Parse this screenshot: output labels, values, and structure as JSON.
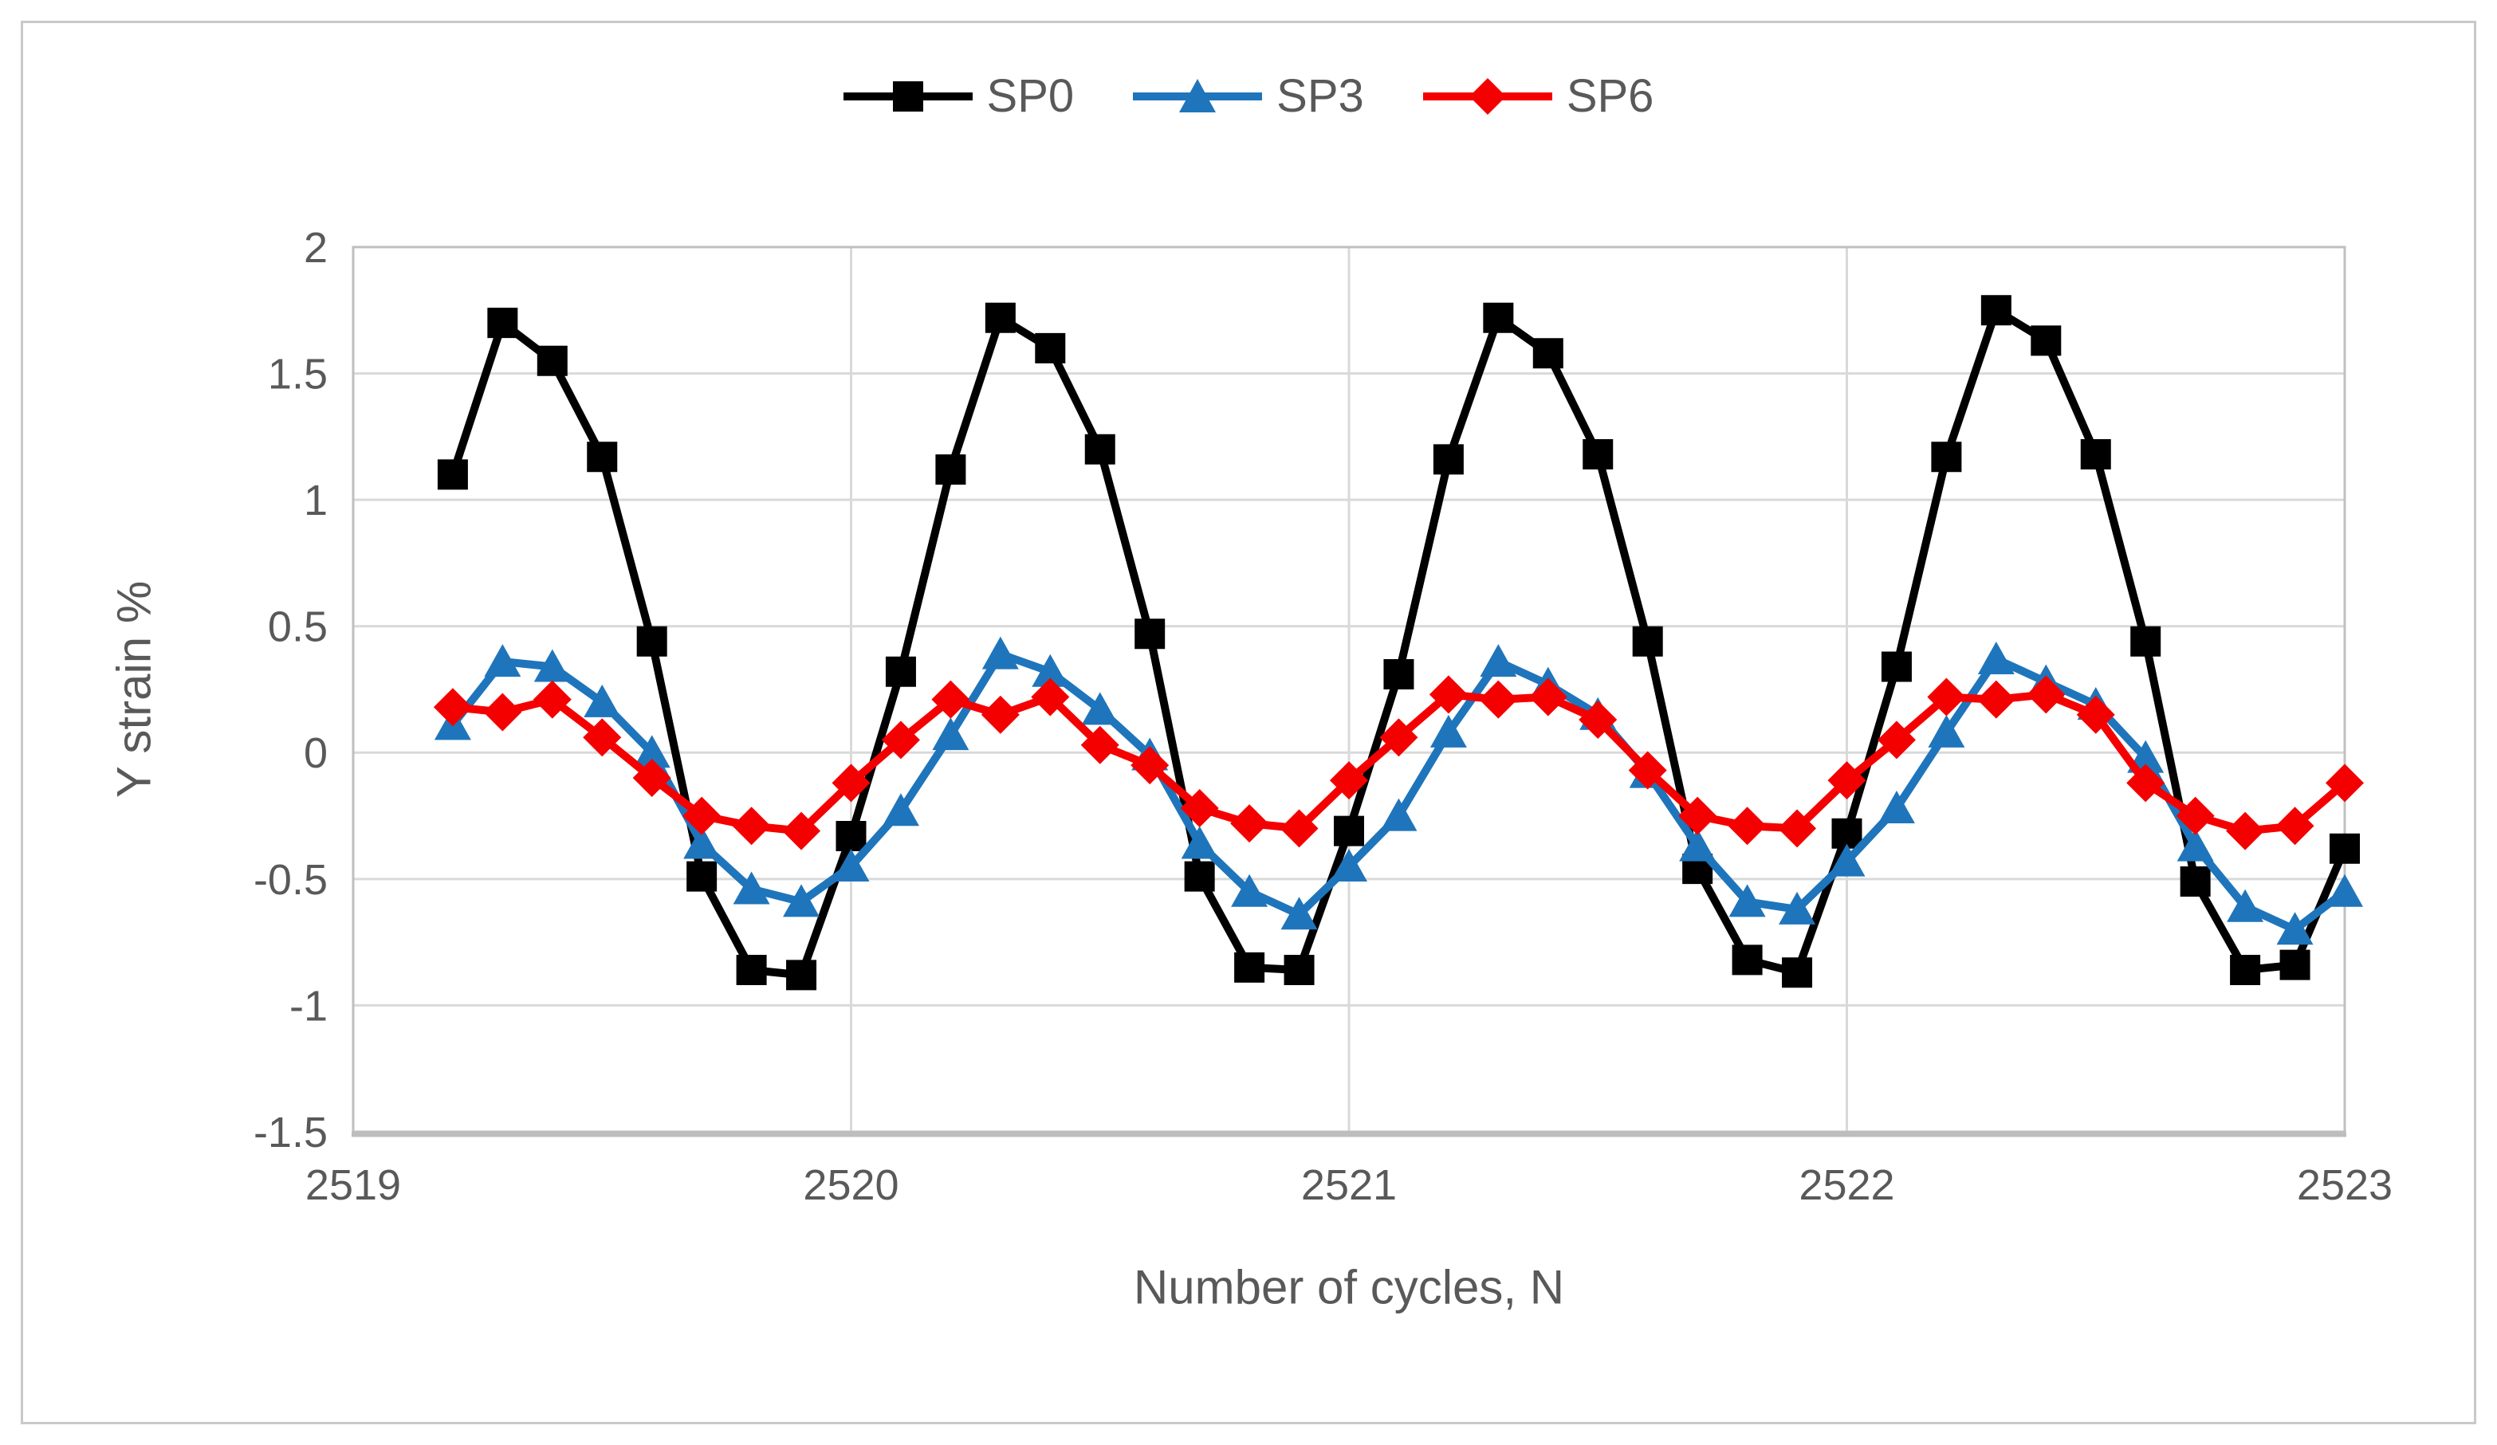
{
  "chart_data": {
    "type": "line",
    "title": "",
    "xlabel": "Number of cycles, N",
    "ylabel": "Y strain %",
    "xlim": [
      2519,
      2523
    ],
    "ylim": [
      -1.5,
      2
    ],
    "x_ticks": [
      "2519",
      "2520",
      "2521",
      "2522",
      "2523"
    ],
    "x_tick_values": [
      2519,
      2520,
      2521,
      2522,
      2523
    ],
    "y_ticks": [
      "2",
      "1.5",
      "1",
      "0.5",
      "0",
      "-0.5",
      "-1",
      "-1.5"
    ],
    "y_tick_values": [
      2,
      1.5,
      1,
      0.5,
      0,
      -0.5,
      -1,
      -1.5
    ],
    "grid": true,
    "legend_position": "top-center",
    "x_start": 2519.2,
    "x_step": 0.1,
    "series": [
      {
        "name": "SP0",
        "color": "#000000",
        "marker": "square",
        "values": [
          1.1,
          1.7,
          1.55,
          1.17,
          0.44,
          -0.49,
          -0.86,
          -0.88,
          -0.33,
          0.32,
          1.12,
          1.72,
          1.6,
          1.2,
          0.47,
          -0.49,
          -0.85,
          -0.86,
          -0.31,
          0.31,
          1.16,
          1.72,
          1.58,
          1.18,
          0.44,
          -0.46,
          -0.82,
          -0.87,
          -0.32,
          0.34,
          1.17,
          1.75,
          1.63,
          1.18,
          0.44,
          -0.51,
          -0.86,
          -0.84,
          -0.38
        ]
      },
      {
        "name": "SP3",
        "color": "#1f75bb",
        "marker": "triangle",
        "values": [
          0.11,
          0.36,
          0.34,
          0.2,
          0.0,
          -0.36,
          -0.54,
          -0.59,
          -0.45,
          -0.23,
          0.07,
          0.39,
          0.32,
          0.17,
          -0.01,
          -0.36,
          -0.55,
          -0.64,
          -0.45,
          -0.25,
          0.08,
          0.36,
          0.27,
          0.15,
          -0.08,
          -0.37,
          -0.59,
          -0.62,
          -0.43,
          -0.22,
          0.08,
          0.37,
          0.28,
          0.19,
          -0.02,
          -0.37,
          -0.61,
          -0.7,
          -0.55
        ]
      },
      {
        "name": "SP6",
        "color": "#f40000",
        "marker": "diamond",
        "values": [
          0.18,
          0.16,
          0.21,
          0.06,
          -0.1,
          -0.25,
          -0.29,
          -0.31,
          -0.12,
          0.05,
          0.21,
          0.15,
          0.22,
          0.03,
          -0.05,
          -0.22,
          -0.28,
          -0.3,
          -0.11,
          0.06,
          0.23,
          0.21,
          0.22,
          0.13,
          -0.07,
          -0.25,
          -0.29,
          -0.3,
          -0.11,
          0.05,
          0.22,
          0.21,
          0.23,
          0.15,
          -0.12,
          -0.25,
          -0.31,
          -0.29,
          -0.12
        ]
      }
    ]
  },
  "colors": {
    "grid": "#d9d9d9",
    "plot_border": "#bfbfbf",
    "axis_line": "#bdbdbd",
    "axis_text": "#595959",
    "figure_border": "#c9c9c9"
  }
}
